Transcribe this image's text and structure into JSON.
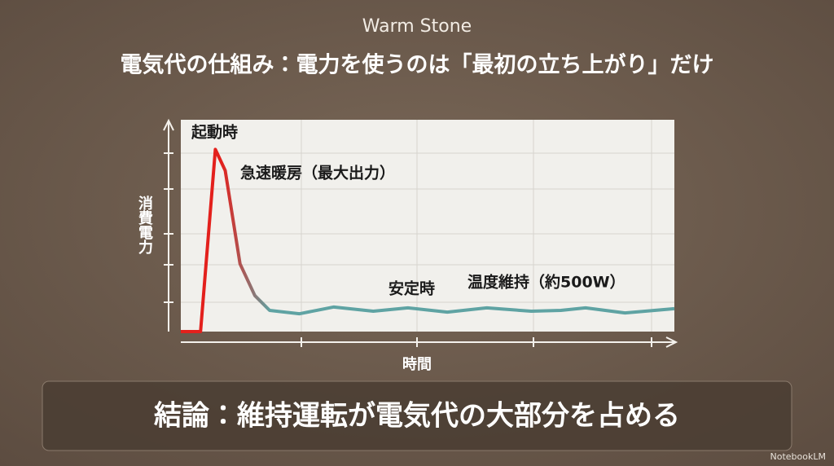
{
  "header": {
    "brand": "Warm Stone",
    "title": "電気代の仕組み：電力を使うのは「最初の立ち上がり」だけ"
  },
  "chart_data": {
    "type": "line",
    "x": [
      0,
      4,
      7,
      9,
      12,
      15,
      18,
      24,
      31,
      39,
      46,
      54,
      62,
      71,
      77,
      82,
      90,
      100
    ],
    "series": [
      {
        "colors": [
          "#e3201c",
          "#5fa3a3"
        ],
        "values": [
          0,
          0,
          4300,
          3800,
          1600,
          850,
          500,
          420,
          580,
          480,
          560,
          460,
          560,
          480,
          500,
          560,
          440,
          540
        ]
      }
    ],
    "xlim": [
      0,
      100
    ],
    "ylim": [
      0,
      5000
    ],
    "x_label": "時間",
    "y_label": "消費電力",
    "annotations": [
      "起動時",
      "急速暖房（最大出力）",
      "安定時",
      "温度維持（約500W）"
    ]
  },
  "footer": {
    "conclusion": "結論：維持運転が電気代の大部分を占める",
    "watermark": "NotebookLM"
  }
}
